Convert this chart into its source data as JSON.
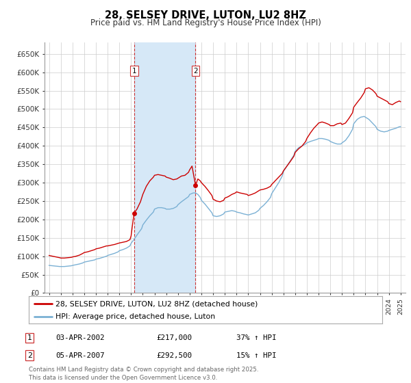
{
  "title": "28, SELSEY DRIVE, LUTON, LU2 8HZ",
  "subtitle": "Price paid vs. HM Land Registry's House Price Index (HPI)",
  "xlim_start": 1994.6,
  "xlim_end": 2025.4,
  "ylim_min": 0,
  "ylim_max": 682000,
  "yticks": [
    0,
    50000,
    100000,
    150000,
    200000,
    250000,
    300000,
    350000,
    400000,
    450000,
    500000,
    550000,
    600000,
    650000
  ],
  "ytick_labels": [
    "£0",
    "£50K",
    "£100K",
    "£150K",
    "£200K",
    "£250K",
    "£300K",
    "£350K",
    "£400K",
    "£450K",
    "£500K",
    "£550K",
    "£600K",
    "£650K"
  ],
  "background_color": "#ffffff",
  "plot_bg_color": "#ffffff",
  "grid_color": "#cccccc",
  "highlight_color": "#d6e8f7",
  "marker1_x": 2002.25,
  "marker2_x": 2007.5,
  "marker1_price": 217000,
  "marker2_price": 292500,
  "red_line_color": "#cc0000",
  "blue_line_color": "#7ab0d4",
  "legend1": "28, SELSEY DRIVE, LUTON, LU2 8HZ (detached house)",
  "legend2": "HPI: Average price, detached house, Luton",
  "table_row1": [
    "1",
    "03-APR-2002",
    "£217,000",
    "37% ↑ HPI"
  ],
  "table_row2": [
    "2",
    "05-APR-2007",
    "£292,500",
    "15% ↑ HPI"
  ],
  "footer": "Contains HM Land Registry data © Crown copyright and database right 2025.\nThis data is licensed under the Open Government Licence v3.0.",
  "red_hpi_data": [
    [
      1995.0,
      102000
    ],
    [
      1995.3,
      100000
    ],
    [
      1995.6,
      98000
    ],
    [
      1995.9,
      96000
    ],
    [
      1996.0,
      95000
    ],
    [
      1996.3,
      95000
    ],
    [
      1996.6,
      96000
    ],
    [
      1996.9,
      97000
    ],
    [
      1997.0,
      98000
    ],
    [
      1997.3,
      100000
    ],
    [
      1997.6,
      103000
    ],
    [
      1997.9,
      108000
    ],
    [
      1998.0,
      110000
    ],
    [
      1998.3,
      112000
    ],
    [
      1998.6,
      115000
    ],
    [
      1998.9,
      118000
    ],
    [
      1999.0,
      120000
    ],
    [
      1999.3,
      122000
    ],
    [
      1999.6,
      125000
    ],
    [
      1999.9,
      128000
    ],
    [
      2000.0,
      128000
    ],
    [
      2000.3,
      130000
    ],
    [
      2000.6,
      132000
    ],
    [
      2000.9,
      135000
    ],
    [
      2001.0,
      136000
    ],
    [
      2001.3,
      138000
    ],
    [
      2001.6,
      140000
    ],
    [
      2001.9,
      145000
    ],
    [
      2002.0,
      155000
    ],
    [
      2002.25,
      217000
    ],
    [
      2002.5,
      228000
    ],
    [
      2002.8,
      248000
    ],
    [
      2003.0,
      268000
    ],
    [
      2003.3,
      290000
    ],
    [
      2003.6,
      305000
    ],
    [
      2003.9,
      315000
    ],
    [
      2004.0,
      320000
    ],
    [
      2004.3,
      322000
    ],
    [
      2004.6,
      320000
    ],
    [
      2004.9,
      318000
    ],
    [
      2005.0,
      315000
    ],
    [
      2005.3,
      312000
    ],
    [
      2005.6,
      308000
    ],
    [
      2005.9,
      310000
    ],
    [
      2006.0,
      312000
    ],
    [
      2006.3,
      318000
    ],
    [
      2006.6,
      320000
    ],
    [
      2006.9,
      328000
    ],
    [
      2007.0,
      335000
    ],
    [
      2007.2,
      345000
    ],
    [
      2007.5,
      292500
    ],
    [
      2007.7,
      310000
    ],
    [
      2007.9,
      305000
    ],
    [
      2008.0,
      300000
    ],
    [
      2008.3,
      290000
    ],
    [
      2008.6,
      278000
    ],
    [
      2008.9,
      265000
    ],
    [
      2009.0,
      255000
    ],
    [
      2009.3,
      250000
    ],
    [
      2009.6,
      248000
    ],
    [
      2009.9,
      252000
    ],
    [
      2010.0,
      258000
    ],
    [
      2010.3,
      262000
    ],
    [
      2010.6,
      268000
    ],
    [
      2010.9,
      272000
    ],
    [
      2011.0,
      275000
    ],
    [
      2011.3,
      272000
    ],
    [
      2011.6,
      270000
    ],
    [
      2011.9,
      268000
    ],
    [
      2012.0,
      265000
    ],
    [
      2012.3,
      268000
    ],
    [
      2012.6,
      272000
    ],
    [
      2012.9,
      278000
    ],
    [
      2013.0,
      280000
    ],
    [
      2013.3,
      282000
    ],
    [
      2013.6,
      285000
    ],
    [
      2013.9,
      290000
    ],
    [
      2014.0,
      295000
    ],
    [
      2014.3,
      305000
    ],
    [
      2014.6,
      315000
    ],
    [
      2014.9,
      325000
    ],
    [
      2015.0,
      332000
    ],
    [
      2015.3,
      345000
    ],
    [
      2015.6,
      358000
    ],
    [
      2015.9,
      372000
    ],
    [
      2016.0,
      382000
    ],
    [
      2016.3,
      392000
    ],
    [
      2016.6,
      400000
    ],
    [
      2016.9,
      412000
    ],
    [
      2017.0,
      420000
    ],
    [
      2017.3,
      435000
    ],
    [
      2017.6,
      448000
    ],
    [
      2017.9,
      458000
    ],
    [
      2018.0,
      462000
    ],
    [
      2018.3,
      465000
    ],
    [
      2018.6,
      462000
    ],
    [
      2018.9,
      458000
    ],
    [
      2019.0,
      455000
    ],
    [
      2019.3,
      455000
    ],
    [
      2019.6,
      460000
    ],
    [
      2019.9,
      462000
    ],
    [
      2020.0,
      458000
    ],
    [
      2020.3,
      462000
    ],
    [
      2020.6,
      475000
    ],
    [
      2020.9,
      490000
    ],
    [
      2021.0,
      505000
    ],
    [
      2021.3,
      518000
    ],
    [
      2021.6,
      530000
    ],
    [
      2021.9,
      545000
    ],
    [
      2022.0,
      555000
    ],
    [
      2022.3,
      558000
    ],
    [
      2022.6,
      552000
    ],
    [
      2022.9,
      542000
    ],
    [
      2023.0,
      535000
    ],
    [
      2023.3,
      530000
    ],
    [
      2023.6,
      525000
    ],
    [
      2023.9,
      520000
    ],
    [
      2024.0,
      515000
    ],
    [
      2024.3,
      512000
    ],
    [
      2024.6,
      518000
    ],
    [
      2024.9,
      522000
    ],
    [
      2025.0,
      520000
    ]
  ],
  "blue_hpi_data": [
    [
      1995.0,
      75000
    ],
    [
      1995.3,
      74000
    ],
    [
      1995.6,
      73000
    ],
    [
      1995.9,
      72000
    ],
    [
      1996.0,
      72000
    ],
    [
      1996.3,
      72000
    ],
    [
      1996.6,
      73000
    ],
    [
      1996.9,
      74000
    ],
    [
      1997.0,
      75000
    ],
    [
      1997.3,
      77000
    ],
    [
      1997.6,
      79000
    ],
    [
      1997.9,
      82000
    ],
    [
      1998.0,
      84000
    ],
    [
      1998.3,
      86000
    ],
    [
      1998.6,
      88000
    ],
    [
      1998.9,
      90000
    ],
    [
      1999.0,
      92000
    ],
    [
      1999.3,
      94000
    ],
    [
      1999.6,
      97000
    ],
    [
      1999.9,
      100000
    ],
    [
      2000.0,
      102000
    ],
    [
      2000.3,
      105000
    ],
    [
      2000.6,
      108000
    ],
    [
      2000.9,
      112000
    ],
    [
      2001.0,
      115000
    ],
    [
      2001.3,
      118000
    ],
    [
      2001.6,
      122000
    ],
    [
      2001.9,
      128000
    ],
    [
      2002.0,
      135000
    ],
    [
      2002.3,
      148000
    ],
    [
      2002.6,
      162000
    ],
    [
      2002.9,
      175000
    ],
    [
      2003.0,
      185000
    ],
    [
      2003.3,
      198000
    ],
    [
      2003.6,
      210000
    ],
    [
      2003.9,
      220000
    ],
    [
      2004.0,
      228000
    ],
    [
      2004.3,
      232000
    ],
    [
      2004.6,
      232000
    ],
    [
      2004.9,
      230000
    ],
    [
      2005.0,
      228000
    ],
    [
      2005.3,
      228000
    ],
    [
      2005.6,
      230000
    ],
    [
      2005.9,
      235000
    ],
    [
      2006.0,
      240000
    ],
    [
      2006.3,
      248000
    ],
    [
      2006.6,
      255000
    ],
    [
      2006.9,
      262000
    ],
    [
      2007.0,
      268000
    ],
    [
      2007.3,
      272000
    ],
    [
      2007.5,
      272000
    ],
    [
      2007.7,
      268000
    ],
    [
      2007.9,
      260000
    ],
    [
      2008.0,
      252000
    ],
    [
      2008.3,
      242000
    ],
    [
      2008.6,
      230000
    ],
    [
      2008.9,
      218000
    ],
    [
      2009.0,
      210000
    ],
    [
      2009.3,
      208000
    ],
    [
      2009.6,
      210000
    ],
    [
      2009.9,
      215000
    ],
    [
      2010.0,
      220000
    ],
    [
      2010.3,
      222000
    ],
    [
      2010.6,
      224000
    ],
    [
      2010.9,
      222000
    ],
    [
      2011.0,
      220000
    ],
    [
      2011.3,
      218000
    ],
    [
      2011.6,
      215000
    ],
    [
      2011.9,
      213000
    ],
    [
      2012.0,
      212000
    ],
    [
      2012.3,
      215000
    ],
    [
      2012.6,
      218000
    ],
    [
      2012.9,
      225000
    ],
    [
      2013.0,
      230000
    ],
    [
      2013.3,
      238000
    ],
    [
      2013.6,
      248000
    ],
    [
      2013.9,
      260000
    ],
    [
      2014.0,
      270000
    ],
    [
      2014.3,
      285000
    ],
    [
      2014.6,
      300000
    ],
    [
      2014.9,
      318000
    ],
    [
      2015.0,
      330000
    ],
    [
      2015.3,
      345000
    ],
    [
      2015.6,
      360000
    ],
    [
      2015.9,
      375000
    ],
    [
      2016.0,
      385000
    ],
    [
      2016.3,
      395000
    ],
    [
      2016.6,
      400000
    ],
    [
      2016.9,
      405000
    ],
    [
      2017.0,
      408000
    ],
    [
      2017.3,
      412000
    ],
    [
      2017.6,
      415000
    ],
    [
      2017.9,
      418000
    ],
    [
      2018.0,
      420000
    ],
    [
      2018.3,
      420000
    ],
    [
      2018.6,
      418000
    ],
    [
      2018.9,
      415000
    ],
    [
      2019.0,
      412000
    ],
    [
      2019.3,
      408000
    ],
    [
      2019.6,
      405000
    ],
    [
      2019.9,
      405000
    ],
    [
      2020.0,
      408000
    ],
    [
      2020.3,
      415000
    ],
    [
      2020.6,
      428000
    ],
    [
      2020.9,
      445000
    ],
    [
      2021.0,
      460000
    ],
    [
      2021.3,
      472000
    ],
    [
      2021.6,
      478000
    ],
    [
      2021.9,
      480000
    ],
    [
      2022.0,
      478000
    ],
    [
      2022.3,
      472000
    ],
    [
      2022.6,
      462000
    ],
    [
      2022.9,
      452000
    ],
    [
      2023.0,
      445000
    ],
    [
      2023.3,
      440000
    ],
    [
      2023.6,
      438000
    ],
    [
      2023.9,
      440000
    ],
    [
      2024.0,
      442000
    ],
    [
      2024.3,
      445000
    ],
    [
      2024.6,
      448000
    ],
    [
      2024.9,
      452000
    ],
    [
      2025.0,
      452000
    ]
  ]
}
